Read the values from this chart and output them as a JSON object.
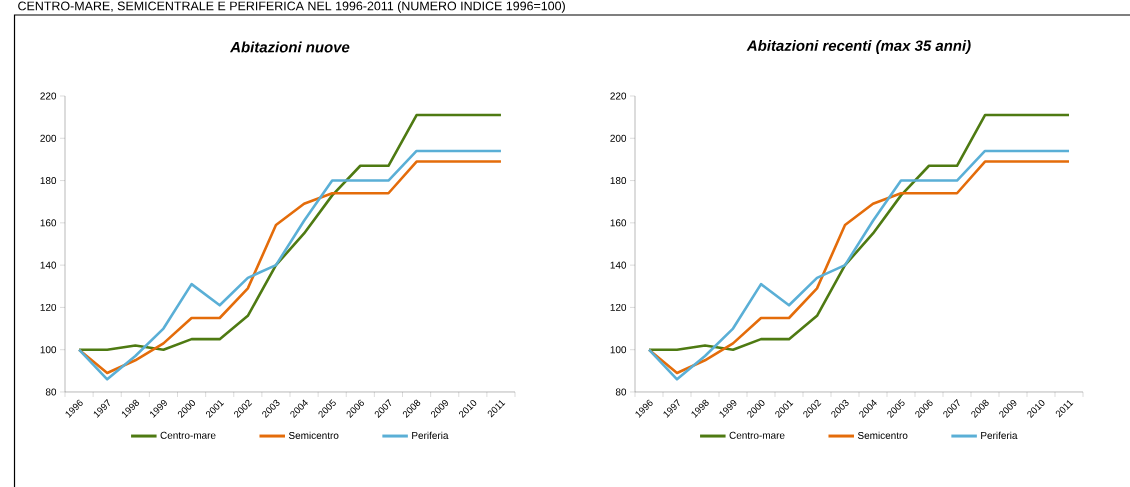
{
  "chart_data": [
    {
      "type": "line",
      "title": "Abitazioni nuove",
      "annotations": [
        "CENTRO-MARE, SEMICENTRALE E PERIFERICA NEL 1996-2011 (NUMERO INDICE 1996=100)"
      ],
      "categories": [
        "1996",
        "1997",
        "1998",
        "1999",
        "2000",
        "2001",
        "2002",
        "2003",
        "2004",
        "2005",
        "2006",
        "2007",
        "2008",
        "2009",
        "2010",
        "2011"
      ],
      "ylim": [
        80,
        220
      ],
      "yticks": [
        80,
        100,
        120,
        140,
        160,
        180,
        200,
        220
      ],
      "legend": "bottom",
      "series": [
        {
          "name": "Centro-mare",
          "color": "#4e7a12",
          "values": [
            100,
            100,
            102,
            100,
            105,
            105,
            116,
            140,
            155,
            173,
            187,
            187,
            211,
            211,
            211,
            211
          ]
        },
        {
          "name": "Semicentro",
          "color": "#e46c0a",
          "values": [
            100,
            89,
            95,
            103,
            115,
            115,
            129,
            159,
            169,
            174,
            174,
            174,
            189,
            189,
            189,
            189
          ]
        },
        {
          "name": "Periferia",
          "color": "#5aafd6",
          "values": [
            100,
            86,
            97,
            110,
            131,
            121,
            134,
            140,
            161,
            180,
            180,
            180,
            194,
            194,
            194,
            194
          ]
        }
      ]
    },
    {
      "type": "line",
      "title": "Abitazioni recenti (max 35 anni)",
      "categories": [
        "1996",
        "1997",
        "1998",
        "1999",
        "2000",
        "2001",
        "2002",
        "2003",
        "2004",
        "2005",
        "2006",
        "2007",
        "2008",
        "2009",
        "2010",
        "2011"
      ],
      "ylim": [
        80,
        220
      ],
      "yticks": [
        80,
        100,
        120,
        140,
        160,
        180,
        200,
        220
      ],
      "legend": "bottom",
      "series": [
        {
          "name": "Centro-mare",
          "color": "#4e7a12",
          "values": [
            100,
            100,
            102,
            100,
            105,
            105,
            116,
            140,
            155,
            173,
            187,
            187,
            211,
            211,
            211,
            211
          ]
        },
        {
          "name": "Semicentro",
          "color": "#e46c0a",
          "values": [
            100,
            89,
            95,
            103,
            115,
            115,
            129,
            159,
            169,
            174,
            174,
            174,
            189,
            189,
            189,
            189
          ]
        },
        {
          "name": "Periferia",
          "color": "#5aafd6",
          "values": [
            100,
            86,
            97,
            110,
            131,
            121,
            134,
            140,
            161,
            180,
            180,
            180,
            194,
            194,
            194,
            194
          ]
        }
      ]
    }
  ]
}
